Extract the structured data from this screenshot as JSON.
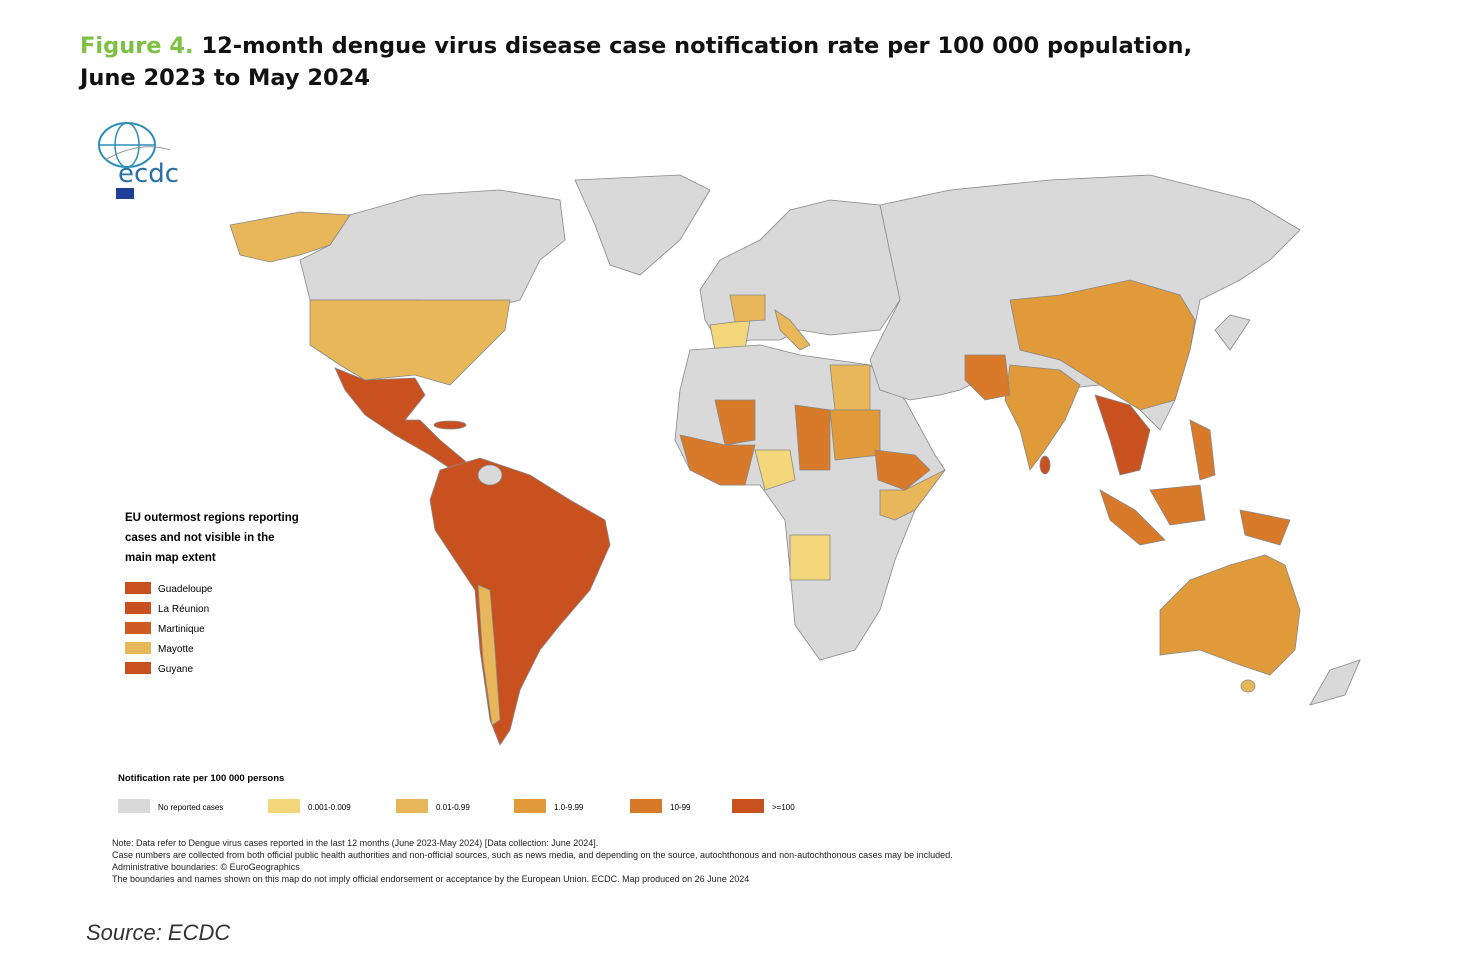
{
  "title": {
    "label": "Figure 4.",
    "lines": [
      "12-month dengue virus disease case notification rate per 100 000 population,",
      "June 2023 to May 2024"
    ]
  },
  "logo": "ecdc",
  "outermost_regions": {
    "title": "EU outermost regions reporting cases and not visible in the main map extent",
    "items": [
      {
        "name": "Guadeloupe",
        "color": "#c9501f"
      },
      {
        "name": "La Réunion",
        "color": "#c9501f"
      },
      {
        "name": "Martinique",
        "color": "#cf5a22"
      },
      {
        "name": "Mayotte",
        "color": "#e8b75a"
      },
      {
        "name": "Guyane",
        "color": "#c9501f"
      }
    ]
  },
  "legend": {
    "title": "Notification rate per 100 000 persons",
    "items": [
      {
        "label": "No reported cases",
        "color": "#d9d9d9"
      },
      {
        "label": "0.001-0.009",
        "color": "#f3d77a"
      },
      {
        "label": "0.01-0.99",
        "color": "#e8b75a"
      },
      {
        "label": "1.0-9.99",
        "color": "#e09a3a"
      },
      {
        "label": "10-99",
        "color": "#d97a2a"
      },
      {
        "label": ">=100",
        "color": "#c9501f"
      }
    ]
  },
  "notes": [
    "Note: Data refer to Dengue virus cases reported in the last 12 months (June 2023-May 2024) [Data collection: June 2024].",
    "Case numbers are collected from both official public health authorities and non-official sources, such as news media, and depending on the source, autochthonous and non-autochthonous cases may be included.",
    "Administrative boundaries: © EuroGeographics",
    "The boundaries and names shown on this map do not imply official endorsement or acceptance by the European Union. ECDC. Map produced on 26 June 2024"
  ],
  "source": "Source: ECDC"
}
